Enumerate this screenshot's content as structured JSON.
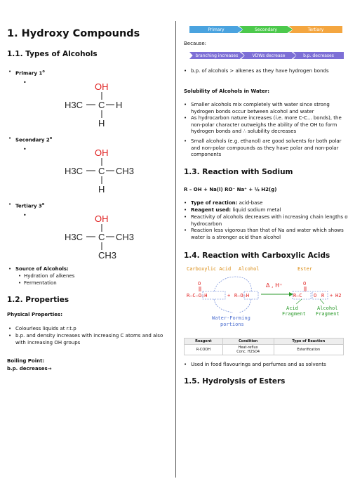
{
  "left": {
    "title": "1. Hydroxy Compounds",
    "s11": "1.1. Types of Alcohols",
    "primary": "Primary 1",
    "secondary": "Secondary 2",
    "tertiary": "Tertiary 3",
    "degree": "o",
    "mol": {
      "OH": "OH",
      "H3C": "H3C",
      "C": "C",
      "H": "H",
      "CH3": "CH3"
    },
    "sources_title": "Source of Alcohols:",
    "sources": [
      "Hydration of alkenes",
      "Fermentation"
    ],
    "s12": "1.2. Properties",
    "phys_title": "Physical Properties:",
    "phys": [
      "Colourless liquids at r.t.p",
      "b.p. and density increases with increasing C atoms and also with increasing OH groups"
    ],
    "bp_title": "Boiling Point:",
    "bp_text": "b.p. decreases→"
  },
  "right": {
    "chevrons": [
      "Primary",
      "Secondary",
      "Tertiary"
    ],
    "because": "Because:",
    "because_chevrons": [
      "branching increases",
      "VDWs decrease",
      "b.p. decreases"
    ],
    "because_bullet": "b.p. of alcohols > alkenes as they have hydrogen bonds",
    "sol_title": "Solubility of Alcohols in Water:",
    "sol": [
      "Smaller alcohols mix completely with water since strong hydrogen bonds occur between alcohol and water",
      "As hydrocarbon nature increases (i.e. more C-C... bonds), the non-polar character outweighs the ability of the OH to form hydrogen bonds and ∴ solubility decreases",
      "Small alcohols (e.g. ethanol) are good solvents for both polar and non-polar compounds as they have polar and non-polar components"
    ],
    "s13": "1.3. Reaction with Sodium",
    "eq13": "R – OH + Na(l) RO⁻ Na⁺ + ½ H2(g)",
    "r13": [
      {
        "label": "Type of reaction:",
        "text": " acid-base"
      },
      {
        "label": "Reagent used:",
        "text": " liquid sodium metal"
      },
      {
        "label": "",
        "text": "Reactivity of alcohols decreases with increasing chain lengths of hydrocarbon"
      },
      {
        "label": "",
        "text": "Reaction less vigorous than that of Na and water which shows water is a stronger acid than alcohol"
      }
    ],
    "s14": "1.4. Reaction with Carboxylic Acids",
    "diag": {
      "carboxylic": "Carboxylic Acid",
      "alcohol": "Alcohol",
      "ester": "Ester",
      "cond": "Δ , H⁺",
      "water1": "Water-Forming",
      "water2": "portions",
      "acidfrag1": "Acid",
      "acidfrag2": "Fragment",
      "alcfrag1": "Alcohol",
      "alcfrag2": "Fragment",
      "acid_formula": "R–C–O–H",
      "plus": "+",
      "alc_formula": "R–O–H",
      "ester_formula": "R–C",
      "O": "O",
      "R": "R",
      "H2O": "H2"
    },
    "table": {
      "headers": [
        "Reagent",
        "Condition",
        "Type of Reaction"
      ],
      "row": [
        "R-COOH",
        "Heat-reflux\nConc. H2SO4",
        "Esterification"
      ]
    },
    "uses": "Used in food flavourings and perfumes and as solvents",
    "s15": "1.5. Hydrolysis of Esters"
  },
  "colors": {
    "red": "#e02020",
    "green": "#2a9a2a",
    "orange": "#d98a10",
    "blue": "#4d6fd0"
  }
}
